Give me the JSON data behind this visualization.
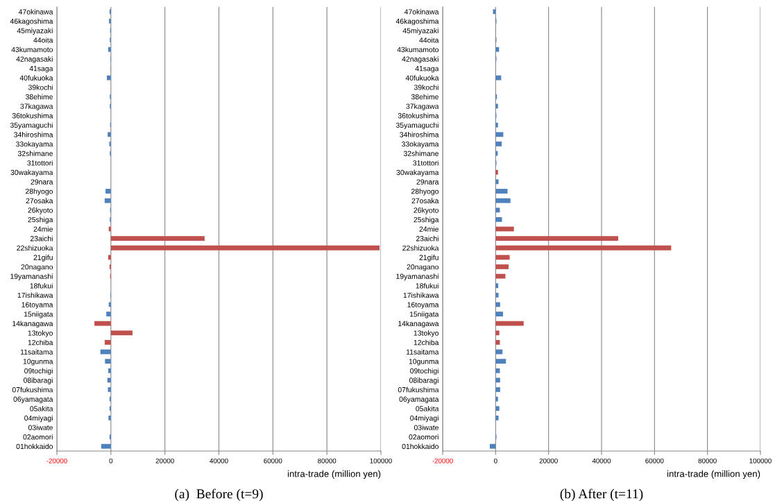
{
  "chart_data": [
    {
      "type": "bar",
      "orientation": "horizontal",
      "xlabel": "intra-trade (million yen)",
      "annotations": [
        "(a)  Before (t=9)"
      ],
      "categories": [
        "47okinawa",
        "46kagoshima",
        "45miyazaki",
        "44oita",
        "43kumamoto",
        "42nagasaki",
        "41saga",
        "40fukuoka",
        "39kochi",
        "38ehime",
        "37kagawa",
        "36tokushima",
        "35yamaguchi",
        "34hiroshima",
        "33okayama",
        "32shimane",
        "31tottori",
        "30wakayama",
        "29nara",
        "28hyogo",
        "27osaka",
        "26kyoto",
        "25shiga",
        "24mie",
        "23aichi",
        "22shizuoka",
        "21gifu",
        "20nagano",
        "19yamanashi",
        "18fukui",
        "17ishikawa",
        "16toyama",
        "15niigata",
        "14kanagawa",
        "13tokyo",
        "12chiba",
        "11saitama",
        "10gunma",
        "09tochigi",
        "08ibaragi",
        "07fukushima",
        "06yamagata",
        "05akita",
        "04miyagi",
        "03iwate",
        "02aomori",
        "01hokkaido"
      ],
      "values": [
        -500,
        -700,
        -300,
        -400,
        -1000,
        -200,
        -100,
        -1500,
        0,
        -400,
        -400,
        0,
        -300,
        -1200,
        -600,
        -400,
        0,
        0,
        0,
        -2000,
        -2300,
        -300,
        -400,
        -800,
        34700,
        99500,
        -1000,
        -500,
        -300,
        0,
        -200,
        -800,
        -1700,
        -6100,
        8000,
        -2300,
        -3900,
        -2200,
        -1000,
        -1300,
        -1100,
        -500,
        -500,
        -900,
        0,
        -500,
        -3600
      ],
      "colors": [
        "#4f81bd",
        "#4f81bd",
        "#4f81bd",
        "#4f81bd",
        "#4f81bd",
        "#4f81bd",
        "#4f81bd",
        "#4f81bd",
        "#4f81bd",
        "#4f81bd",
        "#4f81bd",
        "#4f81bd",
        "#4f81bd",
        "#4f81bd",
        "#4f81bd",
        "#4f81bd",
        "#4f81bd",
        "#4f81bd",
        "#4f81bd",
        "#4f81bd",
        "#4f81bd",
        "#4f81bd",
        "#4f81bd",
        "#c0504d",
        "#c0504d",
        "#c0504d",
        "#c0504d",
        "#c0504d",
        "#c0504d",
        "#4f81bd",
        "#4f81bd",
        "#4f81bd",
        "#4f81bd",
        "#c0504d",
        "#c0504d",
        "#c0504d",
        "#4f81bd",
        "#4f81bd",
        "#4f81bd",
        "#4f81bd",
        "#4f81bd",
        "#4f81bd",
        "#4f81bd",
        "#4f81bd",
        "#4f81bd",
        "#4f81bd",
        "#4f81bd"
      ],
      "xlim": [
        -20000,
        100000
      ],
      "xticks": [
        -20000,
        0,
        20000,
        40000,
        60000,
        80000,
        100000
      ],
      "grid": "x",
      "legend": false
    },
    {
      "type": "bar",
      "orientation": "horizontal",
      "xlabel": "intra-trade (million yen)",
      "annotations": [
        "(b) After (t=11)"
      ],
      "categories": [
        "47okinawa",
        "46kagoshima",
        "45miyazaki",
        "44oita",
        "43kumamoto",
        "42nagasaki",
        "41saga",
        "40fukuoka",
        "39kochi",
        "38ehime",
        "37kagawa",
        "36tokushima",
        "35yamaguchi",
        "34hiroshima",
        "33okayama",
        "32shimane",
        "31tottori",
        "30wakayama",
        "29nara",
        "28hyogo",
        "27osaka",
        "26kyoto",
        "25shiga",
        "24mie",
        "23aichi",
        "22shizuoka",
        "21gifu",
        "20nagano",
        "19yamanashi",
        "18fukui",
        "17ishikawa",
        "16toyama",
        "15niigata",
        "14kanagawa",
        "13tokyo",
        "12chiba",
        "11saitama",
        "10gunma",
        "09tochigi",
        "08ibaragi",
        "07fukushima",
        "06yamagata",
        "05akita",
        "04miyagi",
        "03iwate",
        "02aomori",
        "01hokkaido"
      ],
      "values": [
        -1000,
        300,
        100,
        300,
        1300,
        300,
        0,
        2100,
        0,
        500,
        900,
        300,
        900,
        2900,
        2300,
        800,
        300,
        900,
        1100,
        4500,
        5600,
        1600,
        2400,
        6900,
        46300,
        66300,
        5300,
        4900,
        3700,
        1000,
        1100,
        1700,
        2800,
        10600,
        1400,
        1600,
        2600,
        3900,
        1600,
        1700,
        1700,
        900,
        1400,
        1100,
        0,
        300,
        -2200
      ],
      "colors": [
        "#4f81bd",
        "#4f81bd",
        "#4f81bd",
        "#4f81bd",
        "#4f81bd",
        "#4f81bd",
        "#4f81bd",
        "#4f81bd",
        "#4f81bd",
        "#4f81bd",
        "#4f81bd",
        "#4f81bd",
        "#4f81bd",
        "#4f81bd",
        "#4f81bd",
        "#4f81bd",
        "#4f81bd",
        "#c0504d",
        "#4f81bd",
        "#4f81bd",
        "#4f81bd",
        "#4f81bd",
        "#4f81bd",
        "#c0504d",
        "#c0504d",
        "#c0504d",
        "#c0504d",
        "#c0504d",
        "#c0504d",
        "#4f81bd",
        "#4f81bd",
        "#4f81bd",
        "#4f81bd",
        "#c0504d",
        "#c0504d",
        "#c0504d",
        "#4f81bd",
        "#4f81bd",
        "#4f81bd",
        "#4f81bd",
        "#4f81bd",
        "#4f81bd",
        "#4f81bd",
        "#4f81bd",
        "#4f81bd",
        "#4f81bd",
        "#4f81bd"
      ],
      "xlim": [
        -20000,
        100000
      ],
      "xticks": [
        -20000,
        0,
        20000,
        40000,
        60000,
        80000,
        100000
      ],
      "grid": "x",
      "legend": false
    }
  ]
}
